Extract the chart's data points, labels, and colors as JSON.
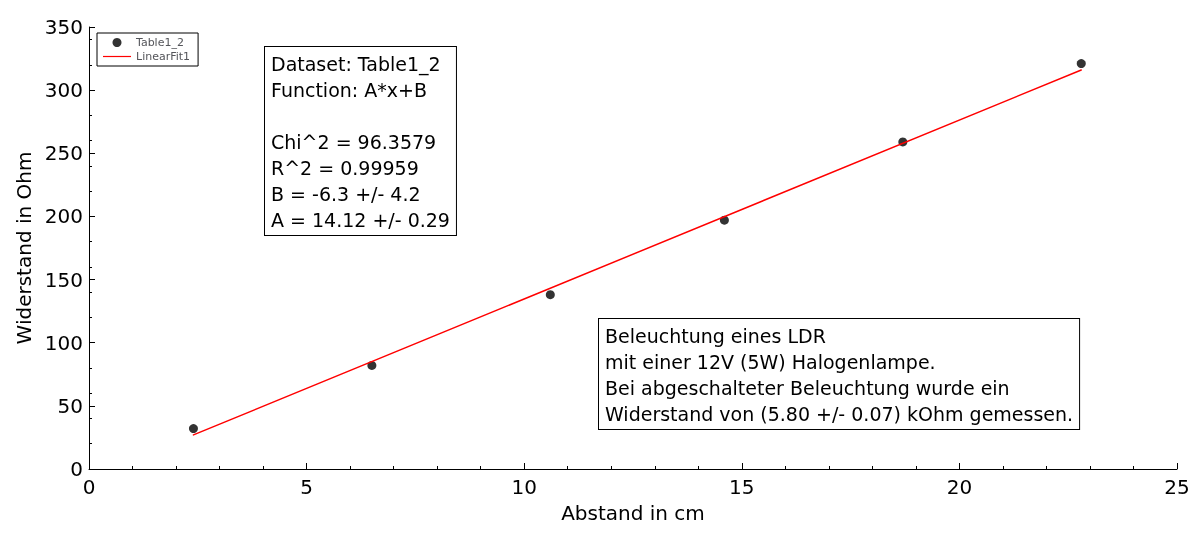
{
  "chart_data": {
    "type": "scatter",
    "xlabel": "Abstand in cm",
    "ylabel": "Widerstand in Ohm",
    "x": [
      2.4,
      6.5,
      10.6,
      14.6,
      18.7,
      22.8
    ],
    "series": [
      {
        "name": "Table1_2",
        "color": "#000000",
        "marker": "circle",
        "values": [
          32,
          82,
          138,
          197,
          259,
          321
        ]
      },
      {
        "name": "LinearFit1",
        "type": "line",
        "color": "#ff0000",
        "marker": "none",
        "line_style": "solid",
        "x": [
          2.4,
          22.8
        ],
        "values": [
          27,
          316
        ]
      }
    ],
    "xlim": [
      0,
      25
    ],
    "xticks": [
      0,
      5,
      10,
      15,
      20,
      25
    ],
    "ylim": [
      0,
      350
    ],
    "yticks": [
      0,
      50,
      100,
      150,
      200,
      250,
      300,
      350
    ],
    "grid": false,
    "legend": "top left",
    "annotations": [
      "Dataset: Table1_2\nFunction: A*x+B\n\nChi^2 = 96.3579\nR^2 = 0.99959\nB = -6.3 +/- 4.2\nA = 14.12 +/- 0.29",
      "Beleuchtung eines LDR\nmit einer 12V (5W) Halogenlampe.\nBei abgeschalteter Beleuchtung wurde ein\nWiderstand von (5.80 +/- 0.07) kOhm gemessen."
    ]
  }
}
